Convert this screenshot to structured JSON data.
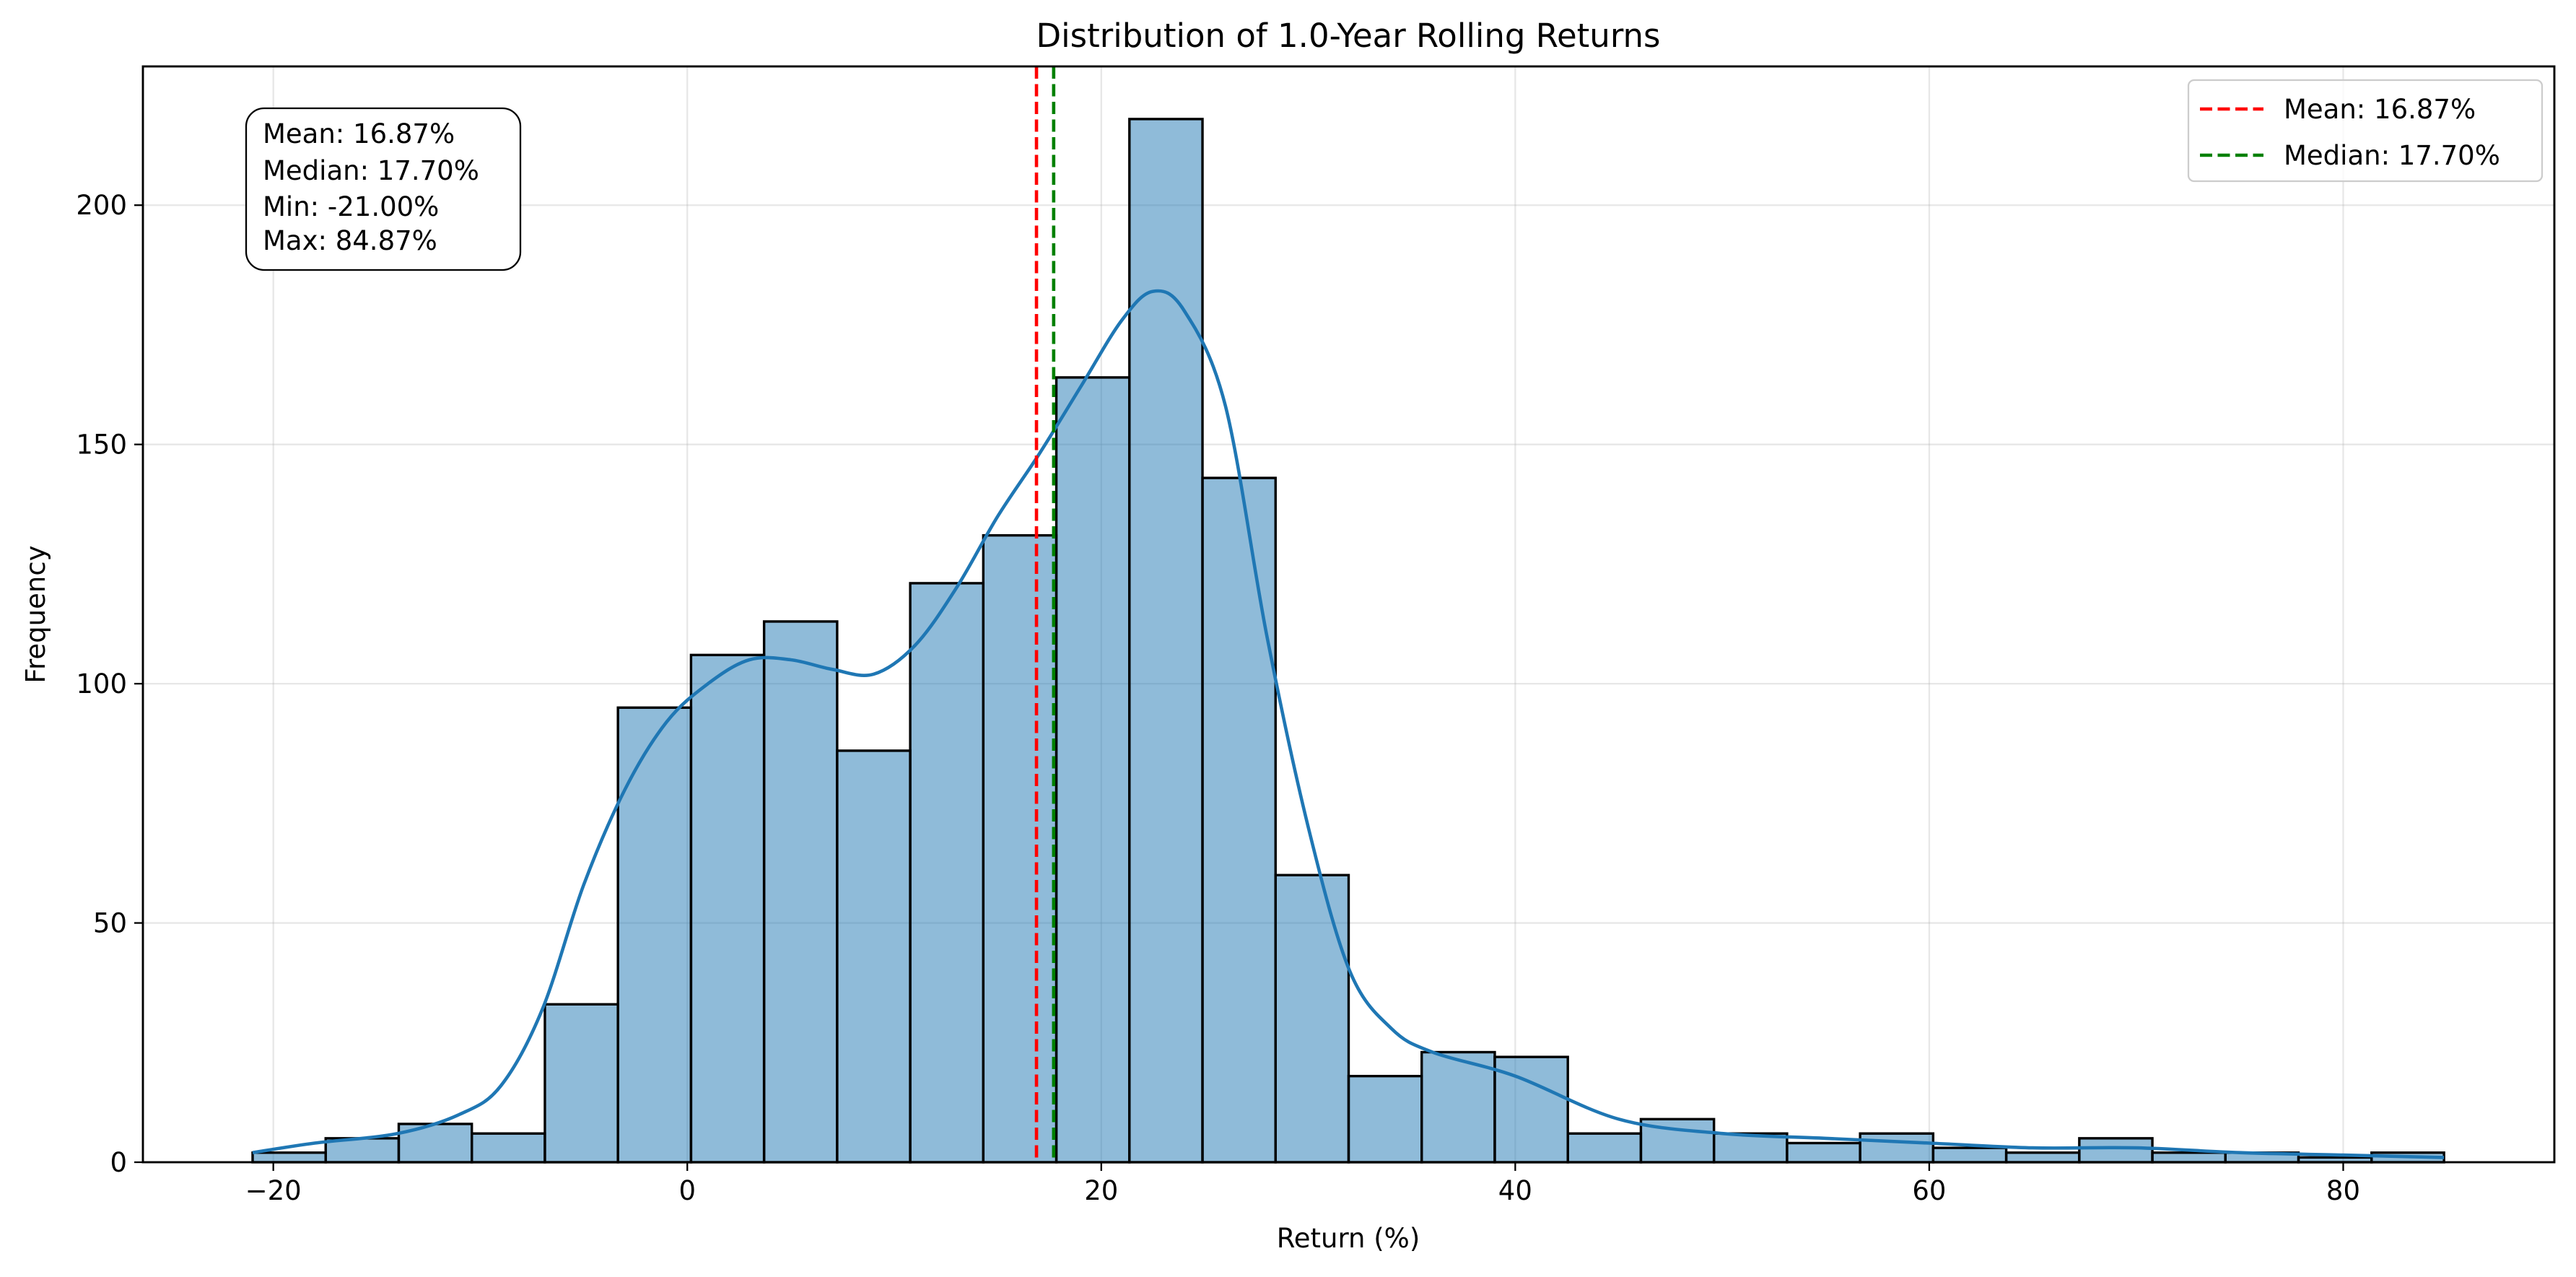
{
  "chart_data": {
    "type": "bar",
    "title": "Distribution of 1.0-Year Rolling Returns",
    "xlabel": "Return (%)",
    "ylabel": "Frequency",
    "xlim": [
      -26.3,
      90.2
    ],
    "ylim": [
      0,
      229
    ],
    "xticks": [
      -20,
      0,
      20,
      40,
      60,
      80
    ],
    "xtick_labels": [
      "−20",
      "0",
      "20",
      "40",
      "60",
      "80"
    ],
    "yticks": [
      0,
      50,
      100,
      150,
      200
    ],
    "ytick_labels": [
      "0",
      "50",
      "100",
      "150",
      "200"
    ],
    "grid": true,
    "legend_position": "upper right",
    "bin_edges": [
      -21.0,
      -17.47,
      -13.94,
      -10.41,
      -6.88,
      -3.35,
      0.18,
      3.71,
      7.24,
      10.77,
      14.3,
      17.83,
      21.36,
      24.89,
      28.42,
      31.95,
      35.48,
      39.01,
      42.54,
      46.07,
      49.6,
      53.13,
      56.66,
      60.19,
      63.72,
      67.25,
      70.78,
      74.31,
      77.84,
      81.37,
      84.87
    ],
    "counts": [
      2,
      5,
      8,
      6,
      33,
      95,
      106,
      113,
      86,
      121,
      131,
      164,
      218,
      143,
      60,
      18,
      23,
      22,
      6,
      9,
      6,
      4,
      6,
      3,
      2,
      5,
      2,
      2,
      1,
      2
    ],
    "kde": {
      "x": [
        -21,
        -18,
        -14,
        -11,
        -9,
        -7,
        -5,
        -3,
        -1,
        1,
        3,
        5,
        7,
        9,
        11,
        13,
        15,
        17,
        19,
        21,
        22.5,
        24,
        26,
        28,
        30,
        32,
        34,
        36,
        40,
        45,
        50,
        55,
        60,
        65,
        70,
        75,
        80,
        84.87
      ],
      "y": [
        2,
        4,
        6,
        10,
        16,
        32,
        58,
        78,
        92,
        100,
        105,
        105,
        103,
        102,
        108,
        120,
        135,
        148,
        162,
        176,
        182,
        178,
        158,
        110,
        70,
        40,
        28,
        23,
        18,
        9,
        6,
        5,
        4,
        3,
        3,
        2,
        1.5,
        1
      ]
    },
    "mean": 16.87,
    "median": 17.7,
    "series": [
      {
        "name": "Mean: 16.87%",
        "color": "#ff0000"
      },
      {
        "name": "Median: 17.70%",
        "color": "#008000"
      }
    ],
    "stats_box": [
      "Mean: 16.87%",
      "Median: 17.70%",
      "Min: -21.00%",
      "Max: 84.87%"
    ],
    "colors": {
      "bar": "#1f77b4",
      "kde": "#1f77b4",
      "mean": "#ff0000",
      "median": "#008000"
    }
  }
}
